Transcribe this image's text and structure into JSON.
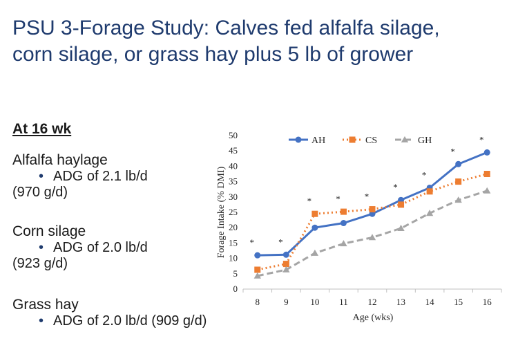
{
  "slide": {
    "title_line1": "PSU 3-Forage Study:   Calves fed alfalfa silage,",
    "title_line2": "corn silage, or grass hay plus 5 lb of grower",
    "heading": "At 16 wk",
    "groups": [
      {
        "name": "Alfalfa haylage",
        "bullet": "ADG of  2.1 lb/d",
        "sub": "(970 g/d)"
      },
      {
        "name": "Corn silage",
        "bullet": "ADG of  2.0 lb/d",
        "sub": "(923 g/d)"
      },
      {
        "name": "Grass hay",
        "bullet": "ADG of 2.0 lb/d  (909 g/d)",
        "sub": ""
      }
    ]
  },
  "chart_data": {
    "type": "line",
    "title": "",
    "xlabel": "Age (wks)",
    "ylabel": "Forage Intake (% DMI)",
    "x": [
      8,
      9,
      10,
      11,
      12,
      13,
      14,
      15,
      16
    ],
    "ylim": [
      0,
      50
    ],
    "yticks": [
      0,
      5,
      10,
      15,
      20,
      25,
      30,
      35,
      40,
      45,
      50
    ],
    "grid": false,
    "legend": "top",
    "significance_marks": [
      "*",
      "*",
      "*",
      "*",
      "*",
      "*",
      "*",
      "*",
      "*"
    ],
    "series": [
      {
        "name": "AH",
        "values": [
          11.0,
          11.2,
          20.0,
          21.5,
          24.5,
          29.0,
          33.0,
          40.7,
          44.5
        ],
        "color": "#4472c4",
        "marker": "circle",
        "dash": "solid"
      },
      {
        "name": "CS",
        "values": [
          6.3,
          8.2,
          24.5,
          25.2,
          26.0,
          27.5,
          31.8,
          35.0,
          37.5
        ],
        "color": "#ed7d31",
        "marker": "square",
        "dash": "dotted"
      },
      {
        "name": "GH",
        "values": [
          4.3,
          6.3,
          11.7,
          14.8,
          16.8,
          19.8,
          24.7,
          29.0,
          32.0
        ],
        "color": "#a5a5a5",
        "marker": "triangle",
        "dash": "dashed"
      }
    ]
  }
}
